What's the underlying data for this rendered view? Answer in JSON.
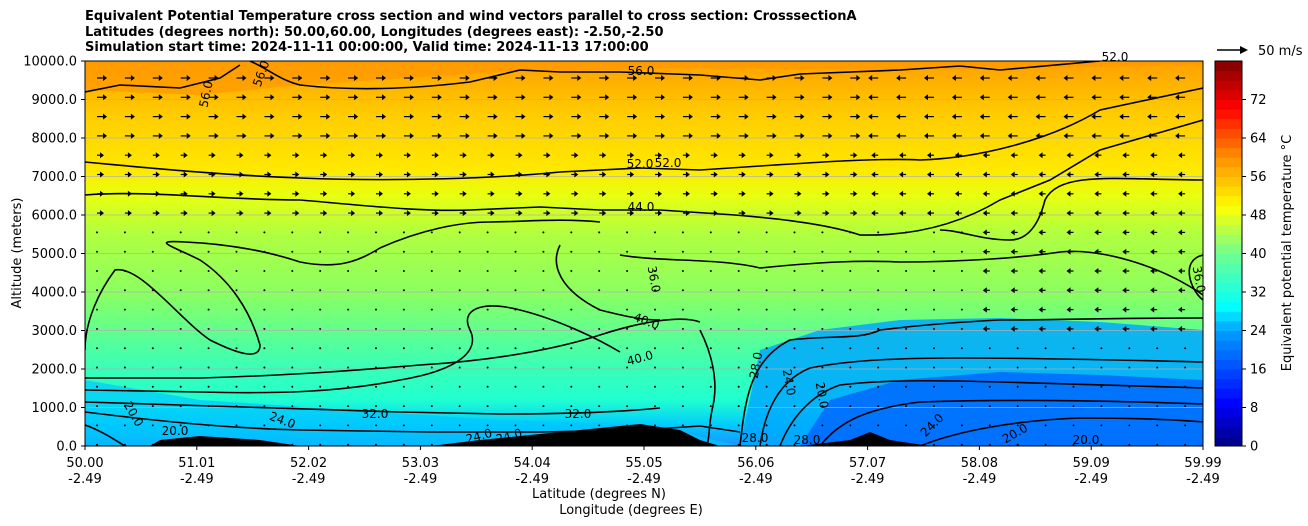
{
  "chart_data": {
    "type": "heatmap",
    "title_lines": [
      "Equivalent Potential Temperature cross section and wind vectors parallel to cross section: CrosssectionA",
      "Latitudes (degrees north): 50.00,60.00, Longitudes (degrees east): -2.50,-2.50",
      "Simulation start time: 2024-11-11 00:00:00, Valid time: 2024-11-13 17:00:00"
    ],
    "ylabel": "Altitude (meters)",
    "xlabel": "Latitude (degrees N)",
    "xlabel2": "Longitude (degrees E)",
    "ylim": [
      0,
      10000
    ],
    "y_ticks": [
      0,
      1000,
      2000,
      3000,
      4000,
      5000,
      6000,
      7000,
      8000,
      9000,
      10000
    ],
    "y_tick_labels": [
      "0.0",
      "1000.0",
      "2000.0",
      "3000.0",
      "4000.0",
      "5000.0",
      "6000.0",
      "7000.0",
      "8000.0",
      "9000.0",
      "10000.0"
    ],
    "x_ticks": [
      {
        "lat": "50.00",
        "lon": "-2.49"
      },
      {
        "lat": "51.01",
        "lon": "-2.49"
      },
      {
        "lat": "52.02",
        "lon": "-2.49"
      },
      {
        "lat": "53.03",
        "lon": "-2.49"
      },
      {
        "lat": "54.04",
        "lon": "-2.49"
      },
      {
        "lat": "55.05",
        "lon": "-2.49"
      },
      {
        "lat": "56.06",
        "lon": "-2.49"
      },
      {
        "lat": "57.07",
        "lon": "-2.49"
      },
      {
        "lat": "58.08",
        "lon": "-2.49"
      },
      {
        "lat": "59.09",
        "lon": "-2.49"
      },
      {
        "lat": "59.99",
        "lon": "-2.49"
      }
    ],
    "colorbar": {
      "label": "Equivalent potential temperature °C",
      "range": [
        0,
        80
      ],
      "ticks": [
        0,
        8,
        16,
        24,
        32,
        40,
        48,
        56,
        64,
        72
      ],
      "tick_labels": [
        "0",
        "8",
        "16",
        "24",
        "32",
        "40",
        "48",
        "56",
        "64",
        "72"
      ]
    },
    "wind_reference": "50 m/s",
    "contour_labels": [
      "56.0",
      "56.0",
      "56.0",
      "52.0",
      "52.0",
      "52.0",
      "44.0",
      "36.0",
      "36.0",
      "40.0",
      "40.0",
      "32.0",
      "32.0",
      "28.0",
      "28.0",
      "28.0",
      "24.0",
      "24.0",
      "24.0",
      "24.0",
      "24.0",
      "20.0",
      "20.0",
      "20.0",
      "20.0",
      "20.0"
    ],
    "grid": true,
    "colormap": "jet"
  }
}
